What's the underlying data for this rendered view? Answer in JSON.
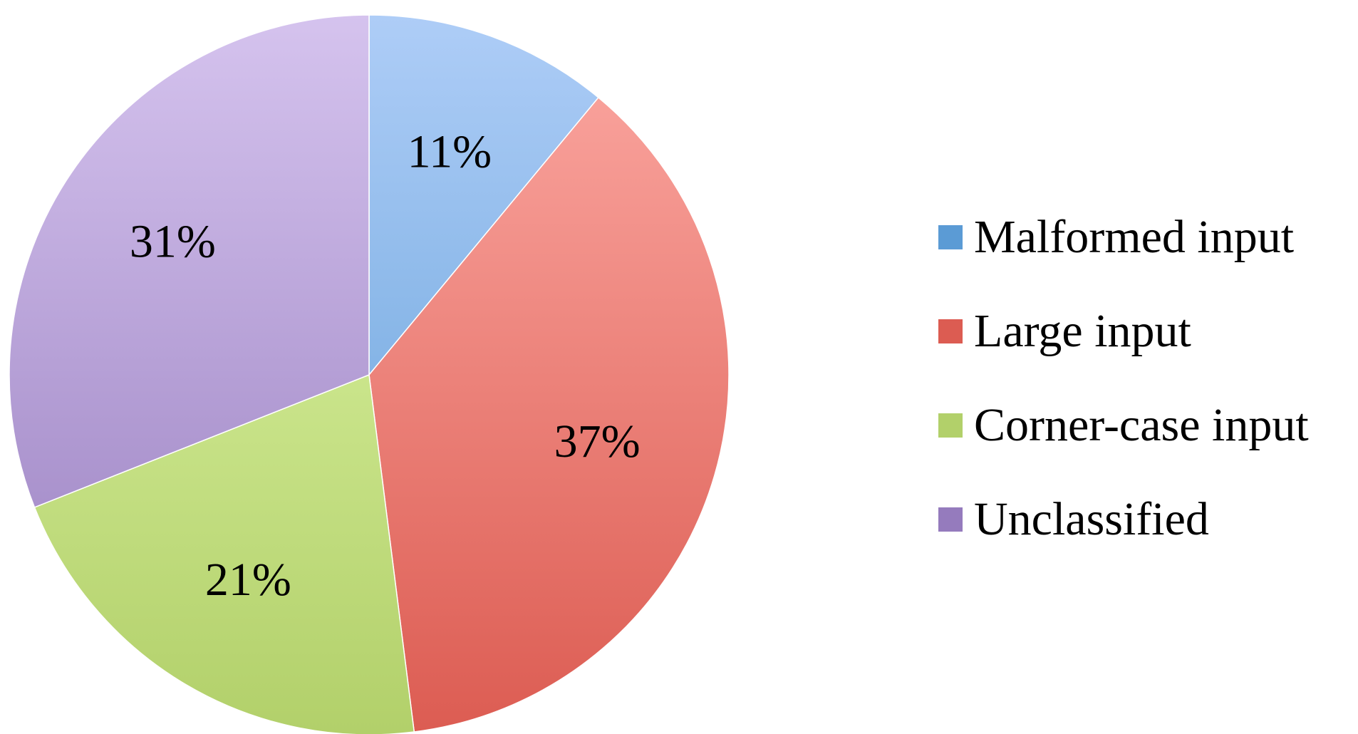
{
  "chart_data": {
    "type": "pie",
    "title": "",
    "legend_position": "right",
    "start_angle_deg": 0,
    "direction": "clockwise",
    "slices": [
      {
        "label": "Malformed input",
        "value": 11,
        "display": "11%",
        "color": "#6fa8e6",
        "color_light": "#aecdf7",
        "color_dark": "#5b9bd5"
      },
      {
        "label": "Large input",
        "value": 37,
        "display": "37%",
        "color": "#ec827a",
        "color_light": "#fca9a3",
        "color_dark": "#dc5c52"
      },
      {
        "label": "Corner-case input",
        "value": 21,
        "display": "21%",
        "color": "#cbe694",
        "color_light": "#e2f9ac",
        "color_dark": "#b2d06a"
      },
      {
        "label": "Unclassified",
        "value": 31,
        "display": "31%",
        "color": "#ae96d3",
        "color_light": "#d5c3ee",
        "color_dark": "#957bbd"
      }
    ]
  }
}
